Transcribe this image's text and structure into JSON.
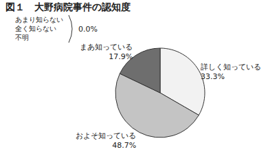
{
  "chart_data": {
    "type": "pie",
    "title": "図１　大野病院事件の認知度",
    "categories": [
      "詳しく知っている",
      "およそ知っている",
      "まあ知っている",
      "あまり知らない\n全く知らない\n不明"
    ],
    "values": [
      33.3,
      48.7,
      17.9,
      0.0
    ],
    "value_labels": [
      "33.3%",
      "48.7%",
      "17.9%",
      "0.0%"
    ],
    "colors": [
      "#f2f2f2",
      "#c4c4c4",
      "#6e6e6e",
      "#ffffff"
    ],
    "data_labels": true
  }
}
